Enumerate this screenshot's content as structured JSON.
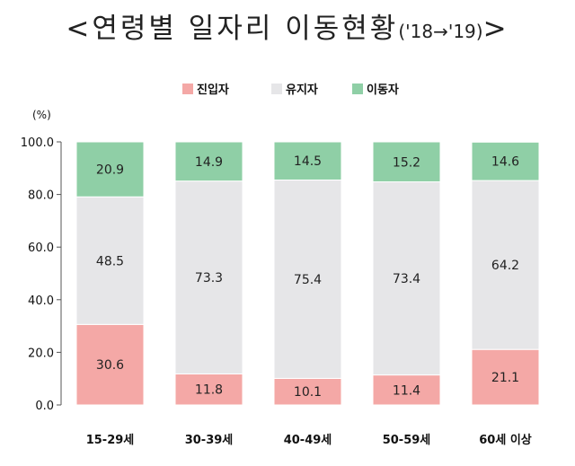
{
  "title": {
    "main": "<연령별 일자리 이동현황",
    "period": "('18→'19)",
    "close": ">"
  },
  "chart_data": {
    "type": "bar",
    "stacked": true,
    "percent": true,
    "unit": "(%)",
    "categories": [
      "15-29세",
      "30-39세",
      "40-49세",
      "50-59세",
      "60세 이상"
    ],
    "series": [
      {
        "name": "진입자",
        "color": "#f4a8a6",
        "values": [
          30.6,
          11.8,
          10.1,
          11.4,
          21.1
        ]
      },
      {
        "name": "유지자",
        "color": "#e6e6e8",
        "values": [
          48.5,
          73.3,
          75.4,
          73.4,
          64.2
        ]
      },
      {
        "name": "이동자",
        "color": "#8fcfa6",
        "values": [
          20.9,
          14.9,
          14.5,
          15.2,
          14.6
        ]
      }
    ],
    "y_ticks": [
      "0.0",
      "20.0",
      "40.0",
      "60.0",
      "80.0",
      "100.0"
    ],
    "ylim": [
      0,
      100
    ],
    "legend_position": "top-center",
    "grid": false
  }
}
